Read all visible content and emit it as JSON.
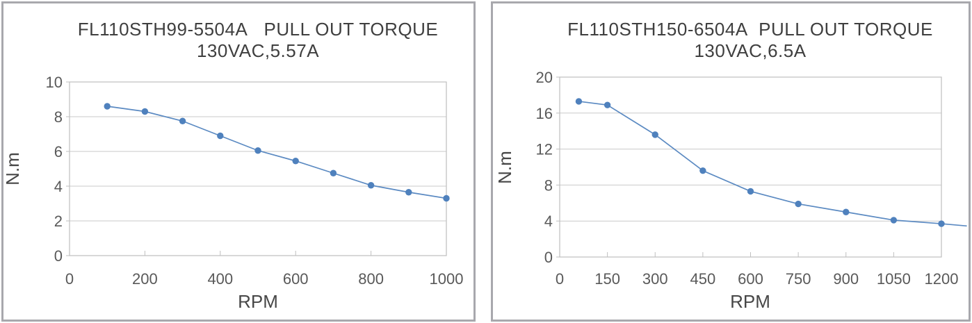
{
  "style": {
    "marker_color": "#4f81bd",
    "line_color": "#5b8ac2",
    "grid_color": "#c9c9c9",
    "plot_border_color": "#bfbfbf",
    "tick_text_color": "#595959",
    "title_text_color": "#3f3f3f",
    "panel_border_color": "#a8a8ad",
    "background": "#ffffff"
  },
  "chart_data": [
    {
      "type": "line",
      "title_line1": "FL110STH99-5504A   PULL OUT TORQUE",
      "title_line2": "130VAC,5.57A",
      "xlabel": "RPM",
      "ylabel": "N.m",
      "legend": null,
      "grid": "horizontal",
      "x_ticks": [
        0,
        200,
        400,
        600,
        800,
        1000
      ],
      "y_ticks": [
        0,
        2,
        4,
        6,
        8,
        10
      ],
      "xlim": [
        0,
        1000
      ],
      "ylim": [
        0,
        10
      ],
      "x": [
        100,
        200,
        300,
        400,
        500,
        600,
        700,
        800,
        900,
        1000
      ],
      "values": [
        8.6,
        8.3,
        7.75,
        6.9,
        6.05,
        5.45,
        4.75,
        4.05,
        3.65,
        3.3
      ]
    },
    {
      "type": "line",
      "title_line1": "FL110STH150-6504A  PULL OUT TORQUE",
      "title_line2": "130VAC,6.5A",
      "xlabel": "RPM",
      "ylabel": "N.m",
      "legend": null,
      "grid": "horizontal",
      "x_ticks": [
        0,
        150,
        300,
        450,
        600,
        750,
        900,
        1050,
        1200
      ],
      "y_ticks": [
        0,
        4,
        8,
        12,
        16,
        20
      ],
      "xlim": [
        0,
        1200
      ],
      "ylim": [
        0,
        20
      ],
      "x": [
        60,
        150,
        300,
        450,
        600,
        750,
        900,
        1050,
        1200
      ],
      "values": [
        17.3,
        16.9,
        13.6,
        9.6,
        7.3,
        5.9,
        5.0,
        4.1,
        3.7
      ],
      "line_extension": {
        "rpm": 1280,
        "torque": 3.45
      }
    }
  ]
}
